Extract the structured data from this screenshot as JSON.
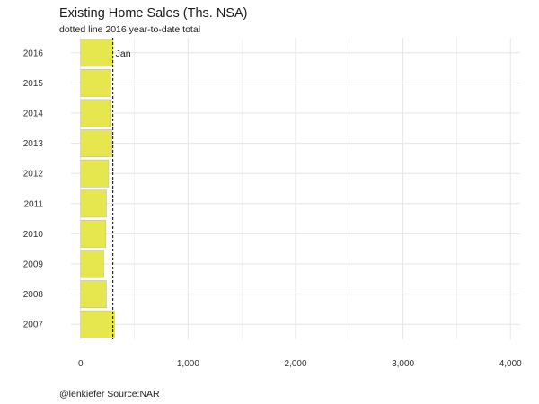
{
  "chart_data": {
    "type": "bar",
    "orientation": "horizontal",
    "title": "Existing Home Sales (Ths. NSA)",
    "subtitle": "dotted line 2016 year-to-date total",
    "caption": "@lenkiefer Source:NAR",
    "xlabel": "",
    "ylabel": "",
    "categories": [
      "2016",
      "2015",
      "2014",
      "2013",
      "2012",
      "2011",
      "2010",
      "2009",
      "2008",
      "2007"
    ],
    "values": [
      300,
      280,
      285,
      290,
      260,
      240,
      235,
      215,
      240,
      315
    ],
    "xlim": [
      -90,
      4090
    ],
    "xticks": [
      0,
      1000,
      2000,
      3000,
      4000
    ],
    "xtick_labels": [
      "0",
      "1,000",
      "2,000",
      "3,000",
      "4,000"
    ],
    "reference_line": {
      "value": 300,
      "style": "dashed"
    },
    "annotation": {
      "text": "Jan",
      "category": "2016",
      "x": 300
    },
    "grid": true,
    "legend": "none",
    "colors": {
      "bar_fill": "#E6E64F",
      "bar_stroke": "#bdbdbd",
      "grid": "#e6e6e6",
      "reference_line": "#000000"
    }
  }
}
